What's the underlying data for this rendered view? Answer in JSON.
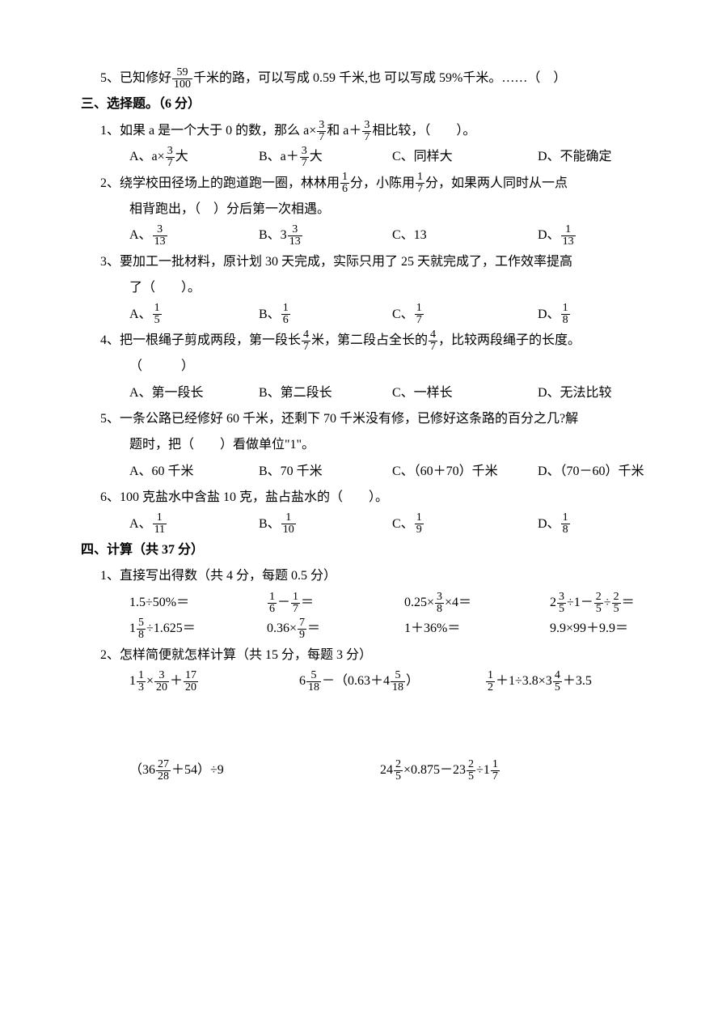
{
  "section2": {
    "q5": {
      "prefix": "5、已知修好",
      "frac": {
        "n": "59",
        "d": "100"
      },
      "suffix": "千米的路，可以写成 0.59 千米,也 可以写成 59%千米。……（　）"
    }
  },
  "section3": {
    "title": "三、选择题。（6 分）",
    "q1": {
      "line1a": "1、如果 a 是一个大于 0 的数，那么 a×",
      "frac1": {
        "n": "3",
        "d": "7"
      },
      "line1b": "和 a＋",
      "frac2": {
        "n": "3",
        "d": "7"
      },
      "line1c": "相比较，（　　）。",
      "optA_pre": "A、a×",
      "optA_frac": {
        "n": "3",
        "d": "7"
      },
      "optA_suf": "大",
      "optB_pre": "B、a＋",
      "optB_frac": {
        "n": "3",
        "d": "7"
      },
      "optB_suf": "大",
      "optC": "C、同样大",
      "optD": "D、不能确定"
    },
    "q2": {
      "line1a": "2、绕学校田径场上的跑道跑一圈，林林用",
      "frac1": {
        "n": "1",
        "d": "6"
      },
      "line1b": "分，小陈用",
      "frac2": {
        "n": "1",
        "d": "7"
      },
      "line1c": "分，如果两人同时从一点",
      "line2": "相背跑出，（　）分后第一次相遇。",
      "optA_pre": "A、",
      "optA_frac": {
        "n": "3",
        "d": "13"
      },
      "optB_pre": "B、3",
      "optB_frac": {
        "n": "3",
        "d": "13"
      },
      "optC": "C、13",
      "optD_pre": "D、",
      "optD_frac": {
        "n": "1",
        "d": "13"
      }
    },
    "q3": {
      "line1": "3、要加工一批材料，原计划 30 天完成，实际只用了 25 天就完成了，工作效率提高",
      "line2": "了（　　）。",
      "optA_pre": "A、",
      "optA_frac": {
        "n": "1",
        "d": "5"
      },
      "optB_pre": "B、",
      "optB_frac": {
        "n": "1",
        "d": "6"
      },
      "optC_pre": "C、",
      "optC_frac": {
        "n": "1",
        "d": "7"
      },
      "optD_pre": "D、",
      "optD_frac": {
        "n": "1",
        "d": "8"
      }
    },
    "q4": {
      "line1a": "4、把一根绳子剪成两段，第一段长",
      "frac1": {
        "n": "4",
        "d": "7"
      },
      "line1b": "米，第二段占全长的",
      "frac2": {
        "n": "4",
        "d": "7"
      },
      "line1c": "，比较两段绳子的长度。",
      "line2": "（　　　）",
      "optA": "A、第一段长",
      "optB": "B、第二段长",
      "optC": "C、一样长",
      "optD": "D、无法比较"
    },
    "q5": {
      "line1": "5、一条公路已经修好 60 千米，还剩下 70 千米没有修，已修好这条路的百分之几?解",
      "line2": "题时，把（　　）看做单位\"1\"。",
      "optA": "A、60 千米",
      "optB": "B、70 千米",
      "optC": "C、（60＋70）千米",
      "optD": "D、（70－60）千米"
    },
    "q6": {
      "line1": "6、100 克盐水中含盐 10 克，盐占盐水的（　　）。",
      "optA_pre": "A、",
      "optA_frac": {
        "n": "1",
        "d": "11"
      },
      "optB_pre": "B、",
      "optB_frac": {
        "n": "1",
        "d": "10"
      },
      "optC_pre": "C、",
      "optC_frac": {
        "n": "1",
        "d": "9"
      },
      "optD_pre": "D、",
      "optD_frac": {
        "n": "1",
        "d": "8"
      }
    }
  },
  "section4": {
    "title": "四、计算（共 37 分）",
    "q1": {
      "title": "1、直接写出得数（共 4 分，每题 0.5 分）",
      "r1": {
        "a": "1.5÷50%＝",
        "b_f1": {
          "n": "1",
          "d": "6"
        },
        "b_mid": "－",
        "b_f2": {
          "n": "1",
          "d": "7"
        },
        "b_suf": "＝",
        "c_pre": "0.25×",
        "c_f": {
          "n": "3",
          "d": "8"
        },
        "c_suf": "×4＝",
        "d_pre": "2",
        "d_f1": {
          "n": "3",
          "d": "5"
        },
        "d_mid1": "÷1－",
        "d_f2": {
          "n": "2",
          "d": "5"
        },
        "d_mid2": "÷",
        "d_f3": {
          "n": "2",
          "d": "5"
        },
        "d_suf": "＝"
      },
      "r2": {
        "a_pre": "1",
        "a_f": {
          "n": "5",
          "d": "8"
        },
        "a_suf": "÷1.625＝",
        "b_pre": "0.36×",
        "b_f": {
          "n": "7",
          "d": "9"
        },
        "b_suf": "＝",
        "c": "1＋36%＝",
        "d": "9.9×99＋9.9＝"
      }
    },
    "q2": {
      "title": "2、怎样简便就怎样计算（共 15 分，每题 3 分）",
      "r1": {
        "a_pre": "1",
        "a_f1": {
          "n": "1",
          "d": "3"
        },
        "a_mid1": "×",
        "a_f2": {
          "n": "3",
          "d": "20"
        },
        "a_mid2": "＋",
        "a_f3": {
          "n": "17",
          "d": "20"
        },
        "b_pre": "6",
        "b_f1": {
          "n": "5",
          "d": "18"
        },
        "b_mid": "－（0.63＋4",
        "b_f2": {
          "n": "5",
          "d": "18"
        },
        "b_suf": "）",
        "c_f1": {
          "n": "1",
          "d": "2"
        },
        "c_mid1": "＋1÷3.8×3",
        "c_f2": {
          "n": "4",
          "d": "5"
        },
        "c_mid2": "＋3.5"
      },
      "r2": {
        "a_pre": "（36",
        "a_f": {
          "n": "27",
          "d": "28"
        },
        "a_suf": "＋54）÷9",
        "b_pre": "24",
        "b_f1": {
          "n": "2",
          "d": "5"
        },
        "b_mid1": "×0.875－23",
        "b_f2": {
          "n": "2",
          "d": "5"
        },
        "b_mid2": "÷1",
        "b_f3": {
          "n": "1",
          "d": "7"
        }
      }
    }
  }
}
